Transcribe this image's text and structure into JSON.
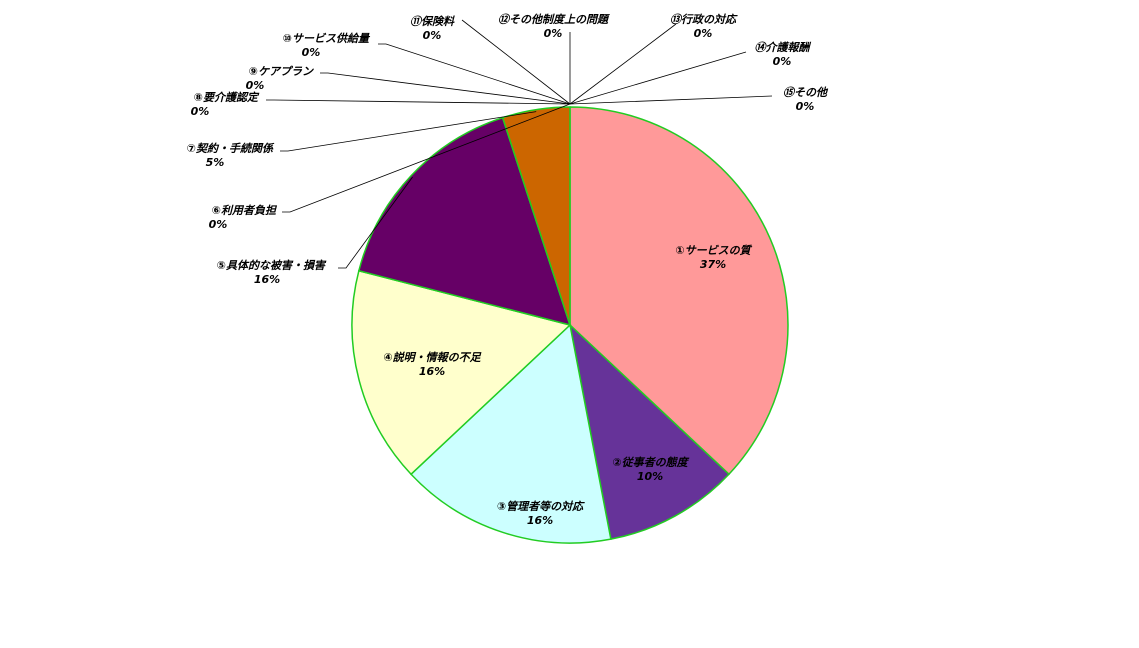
{
  "chart_data": {
    "type": "pie",
    "title": "",
    "categories": [
      "①サービスの質",
      "②従事者の態度",
      "③管理者等の対応",
      "④説明・情報の不足",
      "⑤具体的な被害・損害",
      "⑥利用者負担",
      "⑦契約・手続関係",
      "⑧要介護認定",
      "⑨ケアプラン",
      "⑩サービス供給量",
      "⑪保険料",
      "⑫その他制度上の問題",
      "⑬行政の対応",
      "⑭介護報酬",
      "⑮その他"
    ],
    "values": [
      37,
      10,
      16,
      16,
      16,
      0,
      5,
      0,
      0,
      0,
      0,
      0,
      0,
      0,
      0
    ],
    "value_labels": [
      "37%",
      "10%",
      "16%",
      "16%",
      "16%",
      "0%",
      "5%",
      "0%",
      "0%",
      "0%",
      "0%",
      "0%",
      "0%",
      "0%",
      "0%"
    ],
    "colors": [
      "#ff9999",
      "#663399",
      "#ccffff",
      "#ffffcc",
      "#660066",
      "#ff8080",
      "#cc6600",
      "#0066cc",
      "#ccccff",
      "#000080",
      "#ff00ff",
      "#ffff00",
      "#00ffff",
      "#800080",
      "#800000"
    ],
    "slice_border_color": "#22cc22",
    "legend": "none",
    "start_angle": "12 o'clock",
    "direction": "clockwise"
  }
}
